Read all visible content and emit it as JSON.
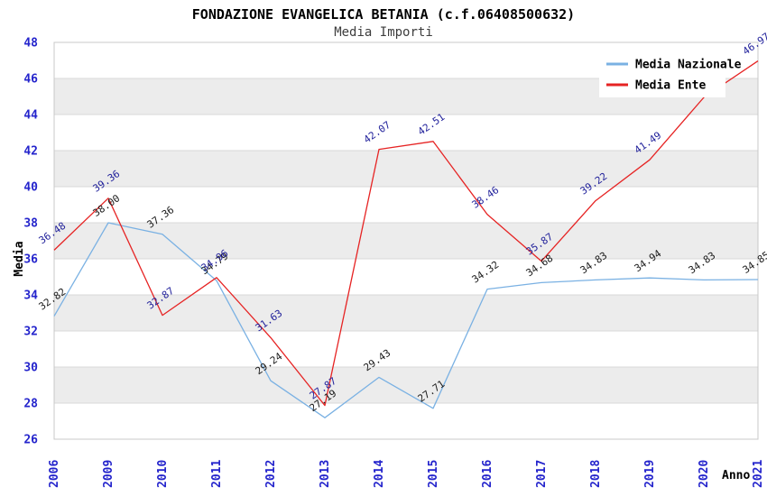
{
  "page": {
    "title": "FONDAZIONE EVANGELICA BETANIA (c.f.06408500632)",
    "subtitle": "Media Importi"
  },
  "chart_data": {
    "type": "line",
    "title": "FONDAZIONE EVANGELICA BETANIA (c.f.06408500632)",
    "subtitle": "Media Importi",
    "xlabel": "Anno",
    "ylabel": "Media",
    "ylim": [
      26,
      48
    ],
    "ytick_step": 2,
    "yticks": [
      26,
      28,
      30,
      32,
      34,
      36,
      38,
      40,
      42,
      44,
      46,
      48
    ],
    "categories": [
      "2006",
      "2009",
      "2010",
      "2011",
      "2012",
      "2013",
      "2014",
      "2015",
      "2016",
      "2017",
      "2018",
      "2019",
      "2020",
      "2021"
    ],
    "grid": "horizontal",
    "background_bands": "alternating-gray-white",
    "legend": {
      "position": "top-right",
      "entries": [
        "Media Nazionale",
        "Media Ente"
      ]
    },
    "series": [
      {
        "name": "Media Nazionale",
        "color": "#7ab1e3",
        "label_color": "#1a1a1a",
        "values": [
          32.82,
          38.0,
          37.36,
          34.79,
          29.24,
          27.19,
          29.43,
          27.71,
          34.32,
          34.68,
          34.83,
          34.94,
          34.83,
          34.85
        ]
      },
      {
        "name": "Media Ente",
        "color": "#e62323",
        "label_color": "#1f1f9a",
        "values": [
          36.48,
          39.36,
          32.87,
          34.96,
          31.63,
          27.87,
          42.07,
          42.51,
          38.46,
          35.87,
          39.22,
          41.49,
          44.95,
          46.97
        ],
        "label_hidden_categories": [
          "2020"
        ]
      }
    ],
    "colors": {
      "tick_label": "#2424cc",
      "grid_line": "#d8d8d8",
      "band_fill": "#ececec",
      "plot_border": "#c8c8c8",
      "axis_title": "#000000",
      "legend_text": "#000000",
      "legend_background": "#ffffff"
    }
  }
}
